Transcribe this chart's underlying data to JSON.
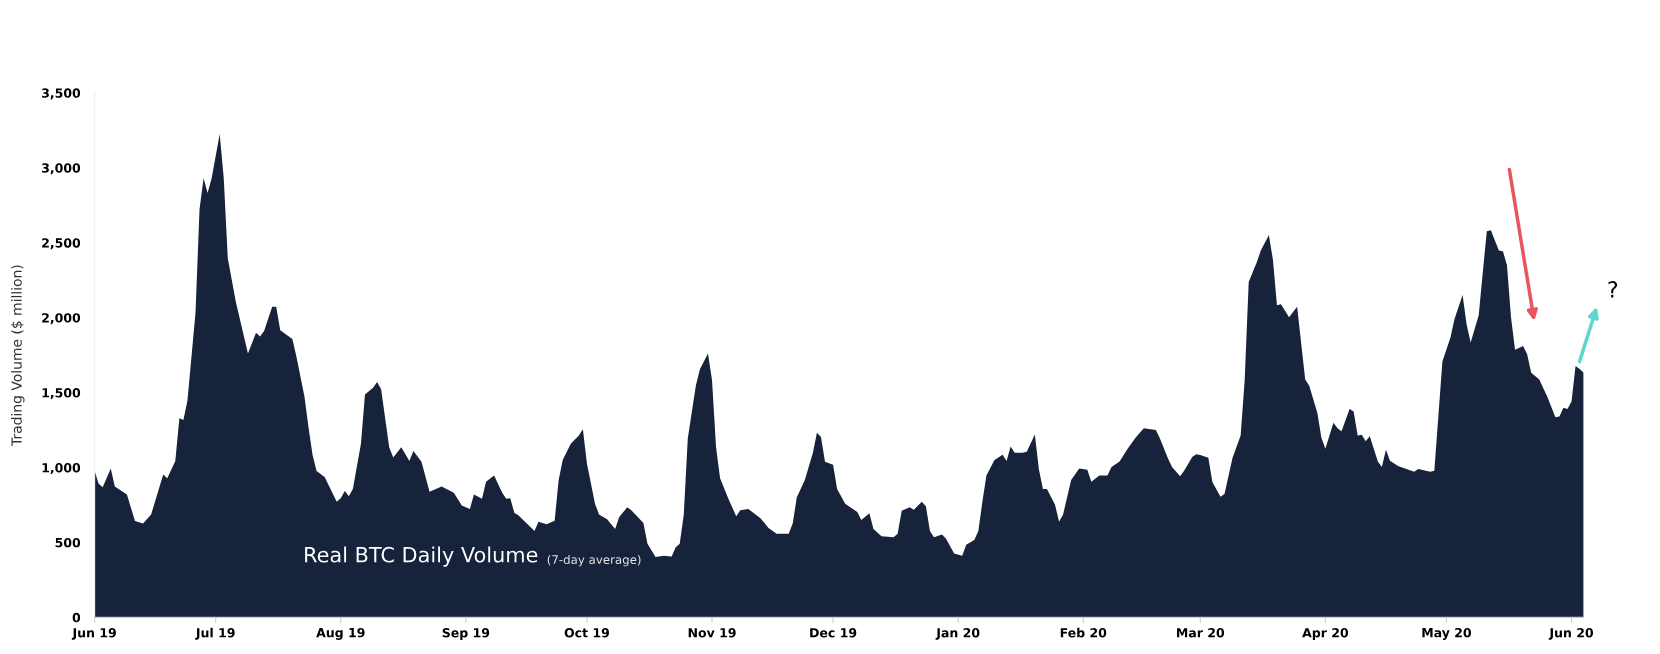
{
  "chart_data": {
    "type": "area",
    "title": "Real BTC Daily Volume",
    "subtitle": "(7-day average)",
    "ylabel": "Trading Volume ($ million)",
    "annotations": [
      "?"
    ],
    "color": "#17233a",
    "grid": false,
    "legend": false,
    "x": [
      "2019-06-01",
      "2019-06-02",
      "2019-06-03",
      "2019-06-05",
      "2019-06-06",
      "2019-06-09",
      "2019-06-11",
      "2019-06-13",
      "2019-06-15",
      "2019-06-18",
      "2019-06-19",
      "2019-06-21",
      "2019-06-22",
      "2019-06-23",
      "2019-06-24",
      "2019-06-26",
      "2019-06-27",
      "2019-06-28",
      "2019-06-29",
      "2019-06-30",
      "2019-07-02",
      "2019-07-03",
      "2019-07-04",
      "2019-07-06",
      "2019-07-09",
      "2019-07-11",
      "2019-07-12",
      "2019-07-13",
      "2019-07-15",
      "2019-07-16",
      "2019-07-17",
      "2019-07-20",
      "2019-07-21",
      "2019-07-23",
      "2019-07-24",
      "2019-07-25",
      "2019-07-26",
      "2019-07-28",
      "2019-07-31",
      "2019-08-01",
      "2019-08-02",
      "2019-08-03",
      "2019-08-04",
      "2019-08-06",
      "2019-08-07",
      "2019-08-09",
      "2019-08-10",
      "2019-08-11",
      "2019-08-13",
      "2019-08-14",
      "2019-08-16",
      "2019-08-18",
      "2019-08-19",
      "2019-08-21",
      "2019-08-23",
      "2019-08-26",
      "2019-08-29",
      "2019-08-31",
      "2019-09-02",
      "2019-09-03",
      "2019-09-05",
      "2019-09-06",
      "2019-09-08",
      "2019-09-10",
      "2019-09-11",
      "2019-09-12",
      "2019-09-13",
      "2019-09-14",
      "2019-09-18",
      "2019-09-19",
      "2019-09-21",
      "2019-09-23",
      "2019-09-24",
      "2019-09-25",
      "2019-09-27",
      "2019-09-29",
      "2019-09-30",
      "2019-10-01",
      "2019-10-03",
      "2019-10-04",
      "2019-10-06",
      "2019-10-08",
      "2019-10-09",
      "2019-10-11",
      "2019-10-12",
      "2019-10-13",
      "2019-10-15",
      "2019-10-16",
      "2019-10-18",
      "2019-10-20",
      "2019-10-22",
      "2019-10-23",
      "2019-10-24",
      "2019-10-25",
      "2019-10-26",
      "2019-10-28",
      "2019-10-29",
      "2019-10-31",
      "2019-11-01",
      "2019-11-02",
      "2019-11-03",
      "2019-11-05",
      "2019-11-07",
      "2019-11-08",
      "2019-11-10",
      "2019-11-13",
      "2019-11-15",
      "2019-11-17",
      "2019-11-20",
      "2019-11-21",
      "2019-11-22",
      "2019-11-24",
      "2019-11-26",
      "2019-11-27",
      "2019-11-28",
      "2019-11-29",
      "2019-12-01",
      "2019-12-02",
      "2019-12-04",
      "2019-12-07",
      "2019-12-08",
      "2019-12-10",
      "2019-12-11",
      "2019-12-13",
      "2019-12-16",
      "2019-12-17",
      "2019-12-18",
      "2019-12-20",
      "2019-12-21",
      "2019-12-23",
      "2019-12-24",
      "2019-12-25",
      "2019-12-26",
      "2019-12-28",
      "2019-12-29",
      "2019-12-31",
      "2020-01-02",
      "2020-01-03",
      "2020-01-05",
      "2020-01-06",
      "2020-01-07",
      "2020-01-08",
      "2020-01-10",
      "2020-01-12",
      "2020-01-13",
      "2020-01-14",
      "2020-01-15",
      "2020-01-17",
      "2020-01-18",
      "2020-01-20",
      "2020-01-21",
      "2020-01-22",
      "2020-01-23",
      "2020-01-25",
      "2020-01-26",
      "2020-01-27",
      "2020-01-29",
      "2020-01-31",
      "2020-02-02",
      "2020-02-03",
      "2020-02-05",
      "2020-02-07",
      "2020-02-08",
      "2020-02-10",
      "2020-02-12",
      "2020-02-14",
      "2020-02-16",
      "2020-02-19",
      "2020-02-20",
      "2020-02-22",
      "2020-02-23",
      "2020-02-25",
      "2020-02-26",
      "2020-02-28",
      "2020-02-29",
      "2020-03-01",
      "2020-03-03",
      "2020-03-04",
      "2020-03-06",
      "2020-03-07",
      "2020-03-09",
      "2020-03-11",
      "2020-03-12",
      "2020-03-13",
      "2020-03-15",
      "2020-03-16",
      "2020-03-18",
      "2020-03-19",
      "2020-03-20",
      "2020-03-21",
      "2020-03-23",
      "2020-03-25",
      "2020-03-26",
      "2020-03-27",
      "2020-03-28",
      "2020-03-30",
      "2020-03-31",
      "2020-04-01",
      "2020-04-03",
      "2020-04-04",
      "2020-04-05",
      "2020-04-07",
      "2020-04-08",
      "2020-04-09",
      "2020-04-10",
      "2020-04-11",
      "2020-04-12",
      "2020-04-14",
      "2020-04-15",
      "2020-04-16",
      "2020-04-17",
      "2020-04-19",
      "2020-04-23",
      "2020-04-24",
      "2020-04-27",
      "2020-04-28",
      "2020-04-30",
      "2020-05-02",
      "2020-05-03",
      "2020-05-05",
      "2020-05-06",
      "2020-05-07",
      "2020-05-09",
      "2020-05-10",
      "2020-05-11",
      "2020-05-12",
      "2020-05-14",
      "2020-05-15",
      "2020-05-16",
      "2020-05-17",
      "2020-05-18",
      "2020-05-20",
      "2020-05-21",
      "2020-05-22",
      "2020-05-24",
      "2020-05-26",
      "2020-05-28",
      "2020-05-29",
      "2020-05-30",
      "2020-05-31",
      "2020-06-01",
      "2020-06-02",
      "2020-06-03",
      "2020-06-04"
    ],
    "values": [
      977,
      892,
      868,
      994,
      873,
      820,
      643,
      626,
      686,
      953,
      929,
      1043,
      1329,
      1317,
      1445,
      2032,
      2723,
      2930,
      2832,
      2930,
      3225,
      2930,
      2396,
      2105,
      1761,
      1899,
      1875,
      1911,
      2073,
      2073,
      1916,
      1858,
      1741,
      1474,
      1268,
      1086,
      977,
      936,
      771,
      795,
      844,
      808,
      856,
      1159,
      1487,
      1533,
      1571,
      1523,
      1135,
      1067,
      1135,
      1043,
      1111,
      1038,
      839,
      873,
      832,
      747,
      723,
      820,
      791,
      905,
      946,
      832,
      791,
      795,
      698,
      681,
      577,
      638,
      621,
      645,
      917,
      1050,
      1159,
      1213,
      1256,
      1026,
      759,
      686,
      655,
      589,
      669,
      735,
      715,
      686,
      630,
      492,
      403,
      412,
      407,
      468,
      492,
      686,
      1196,
      1547,
      1656,
      1761,
      1583,
      1135,
      929,
      795,
      674,
      715,
      723,
      662,
      597,
      558,
      558,
      626,
      800,
      917,
      1099,
      1232,
      1203,
      1038,
      1019,
      856,
      759,
      703,
      650,
      694,
      589,
      541,
      534,
      558,
      711,
      735,
      718,
      771,
      742,
      577,
      534,
      553,
      524,
      427,
      412,
      485,
      517,
      577,
      771,
      946,
      1050,
      1086,
      1043,
      1140,
      1099,
      1099,
      1106,
      1220,
      989,
      856,
      856,
      752,
      638,
      686,
      917,
      994,
      985,
      905,
      946,
      946,
      1003,
      1040,
      1126,
      1200,
      1262,
      1250,
      1193,
      1060,
      1003,
      941,
      978,
      1070,
      1089,
      1084,
      1065,
      904,
      805,
      823,
      1065,
      1213,
      1583,
      2238,
      2369,
      2448,
      2551,
      2386,
      2082,
      2090,
      2003,
      2072,
      1830,
      1588,
      1546,
      1366,
      1200,
      1126,
      1299,
      1262,
      1242,
      1391,
      1373,
      1213,
      1218,
      1176,
      1208,
      1040,
      1003,
      1119,
      1045,
      1010,
      971,
      990,
      971,
      978,
      1707,
      1867,
      1991,
      2151,
      1954,
      1835,
      2016,
      2300,
      2576,
      2584,
      2448,
      2443,
      2349,
      2003,
      1786,
      1811,
      1756,
      1633,
      1588,
      1472,
      1336,
      1341,
      1398,
      1391,
      1440,
      1677,
      1657,
      1633
    ],
    "xlim": [
      "2019-06-01",
      "2020-06-04"
    ],
    "xticks": [
      {
        "value": "2019-06-01",
        "label": "Jun 19"
      },
      {
        "value": "2019-07-01",
        "label": "Jul 19"
      },
      {
        "value": "2019-08-01",
        "label": "Aug 19"
      },
      {
        "value": "2019-09-01",
        "label": "Sep 19"
      },
      {
        "value": "2019-10-01",
        "label": "Oct 19"
      },
      {
        "value": "2019-11-01",
        "label": "Nov 19"
      },
      {
        "value": "2019-12-01",
        "label": "Dec 19"
      },
      {
        "value": "2020-01-01",
        "label": "Jan 20"
      },
      {
        "value": "2020-02-01",
        "label": "Feb 20"
      },
      {
        "value": "2020-03-01",
        "label": "Mar 20"
      },
      {
        "value": "2020-04-01",
        "label": "Apr 20"
      },
      {
        "value": "2020-05-01",
        "label": "May 20"
      },
      {
        "value": "2020-06-01",
        "label": "Jun 20"
      }
    ],
    "ylim": [
      0,
      3500
    ],
    "yticks": [
      {
        "value": 0,
        "label": "0"
      },
      {
        "value": 500,
        "label": "500"
      },
      {
        "value": 1000,
        "label": "1,000"
      },
      {
        "value": 1500,
        "label": "1,500"
      },
      {
        "value": 2000,
        "label": "2,000"
      },
      {
        "value": 2500,
        "label": "2,500"
      },
      {
        "value": 3000,
        "label": "3,000"
      },
      {
        "value": 3500,
        "label": "3,500"
      }
    ]
  }
}
